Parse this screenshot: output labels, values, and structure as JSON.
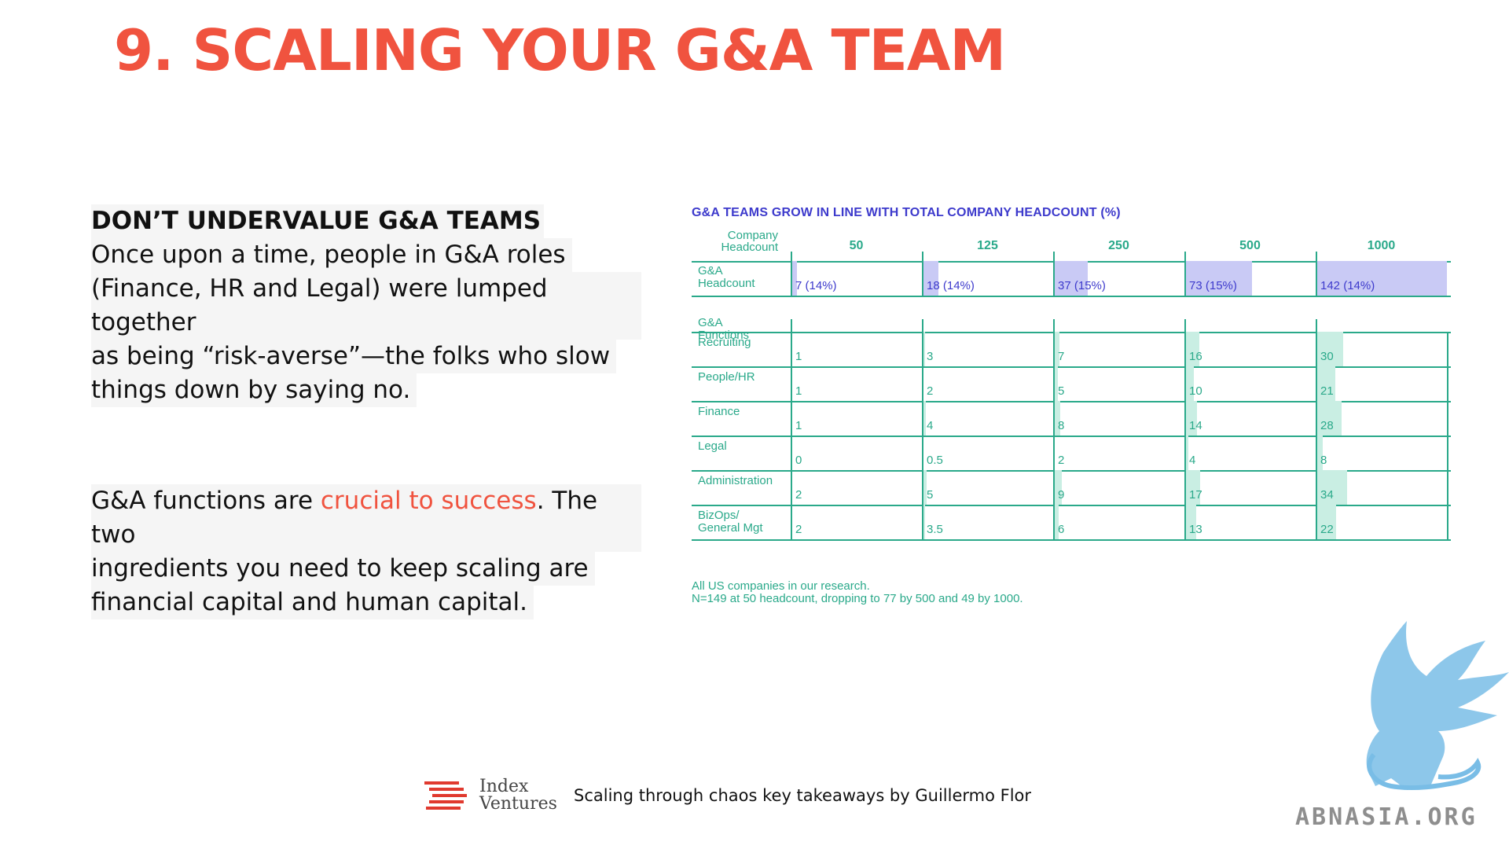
{
  "slide": {
    "title": "9. SCALING YOUR G&A TEAM"
  },
  "left": {
    "heading": "DON’T UNDERVALUE G&A TEAMS",
    "para1_lines": [
      "Once upon a time, people in G&A roles",
      "(Finance, HR and Legal) were lumped together",
      "as being “risk-averse”—the folks who slow",
      "things down by saying no."
    ],
    "para2_pre": "G&A functions are ",
    "para2_accent": "crucial to success",
    "para2_post": ". The two",
    "para2_lines": [
      "ingredients you need to keep scaling are",
      "financial capital and human capital."
    ]
  },
  "table": {
    "title": "G&A TEAMS GROW IN LINE WITH TOTAL COMPANY HEADCOUNT (%)",
    "header_label_1": "Company",
    "header_label_2": "Headcount",
    "columns": [
      "50",
      "125",
      "250",
      "500",
      "1000"
    ],
    "headcount_label_1": "G&A",
    "headcount_label_2": "Headcount",
    "headcount_values": [
      "7 (14%)",
      "18 (14%)",
      "37 (15%)",
      "73 (15%)",
      "142 (14%)"
    ],
    "functions_label_1": "G&A",
    "functions_label_2": "Functions",
    "rows": [
      {
        "label_1": "Recruiting",
        "label_2": "",
        "values": [
          "1",
          "3",
          "7",
          "16",
          "30"
        ]
      },
      {
        "label_1": "People/HR",
        "label_2": "",
        "values": [
          "1",
          "2",
          "5",
          "10",
          "21"
        ]
      },
      {
        "label_1": "Finance",
        "label_2": "",
        "values": [
          "1",
          "4",
          "8",
          "14",
          "28"
        ]
      },
      {
        "label_1": "Legal",
        "label_2": "",
        "values": [
          "0",
          "0.5",
          "2",
          "4",
          "8"
        ]
      },
      {
        "label_1": "Administration",
        "label_2": "",
        "values": [
          "2",
          "5",
          "9",
          "17",
          "34"
        ]
      },
      {
        "label_1": "BizOps/",
        "label_2": "General Mgt",
        "values": [
          "2",
          "3.5",
          "6",
          "13",
          "22"
        ]
      }
    ],
    "footnote_1": "All US companies in our research.",
    "footnote_2": "N=149 at 50 headcount, dropping to 77 by 500 and 49 by 1000."
  },
  "chart_data": {
    "type": "table",
    "title": "G&A TEAMS GROW IN LINE WITH TOTAL COMPANY HEADCOUNT (%)",
    "categories": [
      "50",
      "125",
      "250",
      "500",
      "1000"
    ],
    "series": [
      {
        "name": "G&A Headcount",
        "values": [
          7,
          18,
          37,
          73,
          142
        ]
      },
      {
        "name": "Recruiting",
        "values": [
          1,
          3,
          7,
          16,
          30
        ]
      },
      {
        "name": "People/HR",
        "values": [
          1,
          2,
          5,
          10,
          21
        ]
      },
      {
        "name": "Finance",
        "values": [
          1,
          4,
          8,
          14,
          28
        ]
      },
      {
        "name": "Legal",
        "values": [
          0,
          0.5,
          2,
          4,
          8
        ]
      },
      {
        "name": "Administration",
        "values": [
          2,
          5,
          9,
          17,
          34
        ]
      },
      {
        "name": "BizOps/General Mgt",
        "values": [
          2,
          3.5,
          6,
          13,
          22
        ]
      }
    ],
    "headcount_pct": [
      14,
      14,
      15,
      15,
      14
    ]
  },
  "footer": {
    "brand_line1": "Index",
    "brand_line2": "Ventures",
    "caption": "Scaling through chaos key takeaways by Guillermo Flor"
  },
  "watermark": {
    "text": "ABNASIA.ORG"
  },
  "colors": {
    "title": "#f0533f",
    "table_green": "#2aa98a",
    "table_purple": "#3d3acc"
  }
}
